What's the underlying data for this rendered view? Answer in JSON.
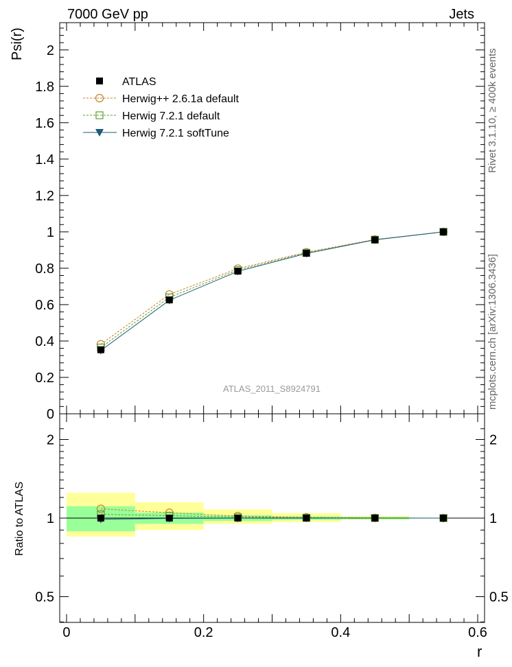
{
  "header": {
    "left": "7000 GeV pp",
    "right": "Jets"
  },
  "side_text": {
    "top": "Rivet 3.1.10, ≥ 400k events",
    "bottom": "mcplots.cern.ch [arXiv:1306.3436]"
  },
  "analysis_id": "ATLAS_2011_S8924791",
  "colors": {
    "atlas": "#000000",
    "herwigpp": "#c87f2a",
    "herwig721": "#5a9e2a",
    "softtune": "#1e5a78",
    "band_inner": "#99ff99",
    "band_outer": "#ffff99"
  },
  "chart_data": [
    {
      "type": "line",
      "ylabel": "Psi(r)",
      "xlim": [
        -0.01,
        0.61
      ],
      "ylim": [
        0,
        2.15
      ],
      "yticks": [
        0,
        0.2,
        0.4,
        0.6,
        0.8,
        1,
        1.2,
        1.4,
        1.6,
        1.8,
        2
      ],
      "ytick_labels": [
        "0",
        "0.2",
        "0.4",
        "0.6",
        "0.8",
        "1",
        "1.2",
        "1.4",
        "1.6",
        "1.8",
        "2"
      ],
      "legend_position": "top-left",
      "x": [
        0.05,
        0.15,
        0.25,
        0.35,
        0.45,
        0.55
      ],
      "series": [
        {
          "name": "ATLAS",
          "marker": "filled-square",
          "values": [
            0.352,
            0.626,
            0.784,
            0.882,
            0.956,
            1.0
          ]
        },
        {
          "name": "Herwig++ 2.6.1a default",
          "marker": "open-circle",
          "values": [
            0.382,
            0.656,
            0.798,
            0.888,
            0.958,
            1.0
          ]
        },
        {
          "name": "Herwig 7.2.1 default",
          "marker": "open-square",
          "values": [
            0.364,
            0.64,
            0.79,
            0.885,
            0.957,
            1.0
          ]
        },
        {
          "name": "Herwig 7.2.1 softTune",
          "marker": "filled-triangle-down",
          "values": [
            0.348,
            0.624,
            0.783,
            0.881,
            0.956,
            1.0
          ]
        }
      ]
    },
    {
      "type": "line",
      "xlabel": "r",
      "ylabel": "Ratio to ATLAS",
      "xlim": [
        -0.01,
        0.61
      ],
      "ylim": [
        0.35,
        2.35
      ],
      "yticks": [
        0.5,
        1,
        2
      ],
      "ytick_labels": [
        "0.5",
        "1",
        "2"
      ],
      "xticks": [
        0,
        0.2,
        0.4,
        0.6
      ],
      "xtick_labels": [
        "0",
        "0.2",
        "0.4",
        "0.6"
      ],
      "bands": [
        {
          "x0": 0.0,
          "x1": 0.1,
          "inner": [
            0.89,
            1.11
          ],
          "outer": [
            0.85,
            1.25
          ]
        },
        {
          "x0": 0.1,
          "x1": 0.2,
          "inner": [
            0.95,
            1.05
          ],
          "outer": [
            0.9,
            1.15
          ]
        },
        {
          "x0": 0.2,
          "x1": 0.3,
          "inner": [
            0.975,
            1.025
          ],
          "outer": [
            0.95,
            1.08
          ]
        },
        {
          "x0": 0.3,
          "x1": 0.4,
          "inner": [
            0.985,
            1.015
          ],
          "outer": [
            0.965,
            1.045
          ]
        },
        {
          "x0": 0.4,
          "x1": 0.5,
          "inner": [
            0.99,
            1.01
          ],
          "outer": [
            0.985,
            1.02
          ]
        }
      ],
      "x": [
        0.05,
        0.15,
        0.25,
        0.35,
        0.45,
        0.55
      ],
      "series": [
        {
          "name": "ATLAS",
          "values": [
            1,
            1,
            1,
            1,
            1,
            1
          ]
        },
        {
          "name": "Herwig++ 2.6.1a default",
          "values": [
            1.085,
            1.048,
            1.018,
            1.007,
            1.002,
            1.0
          ]
        },
        {
          "name": "Herwig 7.2.1 default",
          "values": [
            1.034,
            1.022,
            1.008,
            1.003,
            1.001,
            1.0
          ]
        },
        {
          "name": "Herwig 7.2.1 softTune",
          "values": [
            0.99,
            0.997,
            0.999,
            0.999,
            1.0,
            1.0
          ]
        }
      ]
    }
  ]
}
